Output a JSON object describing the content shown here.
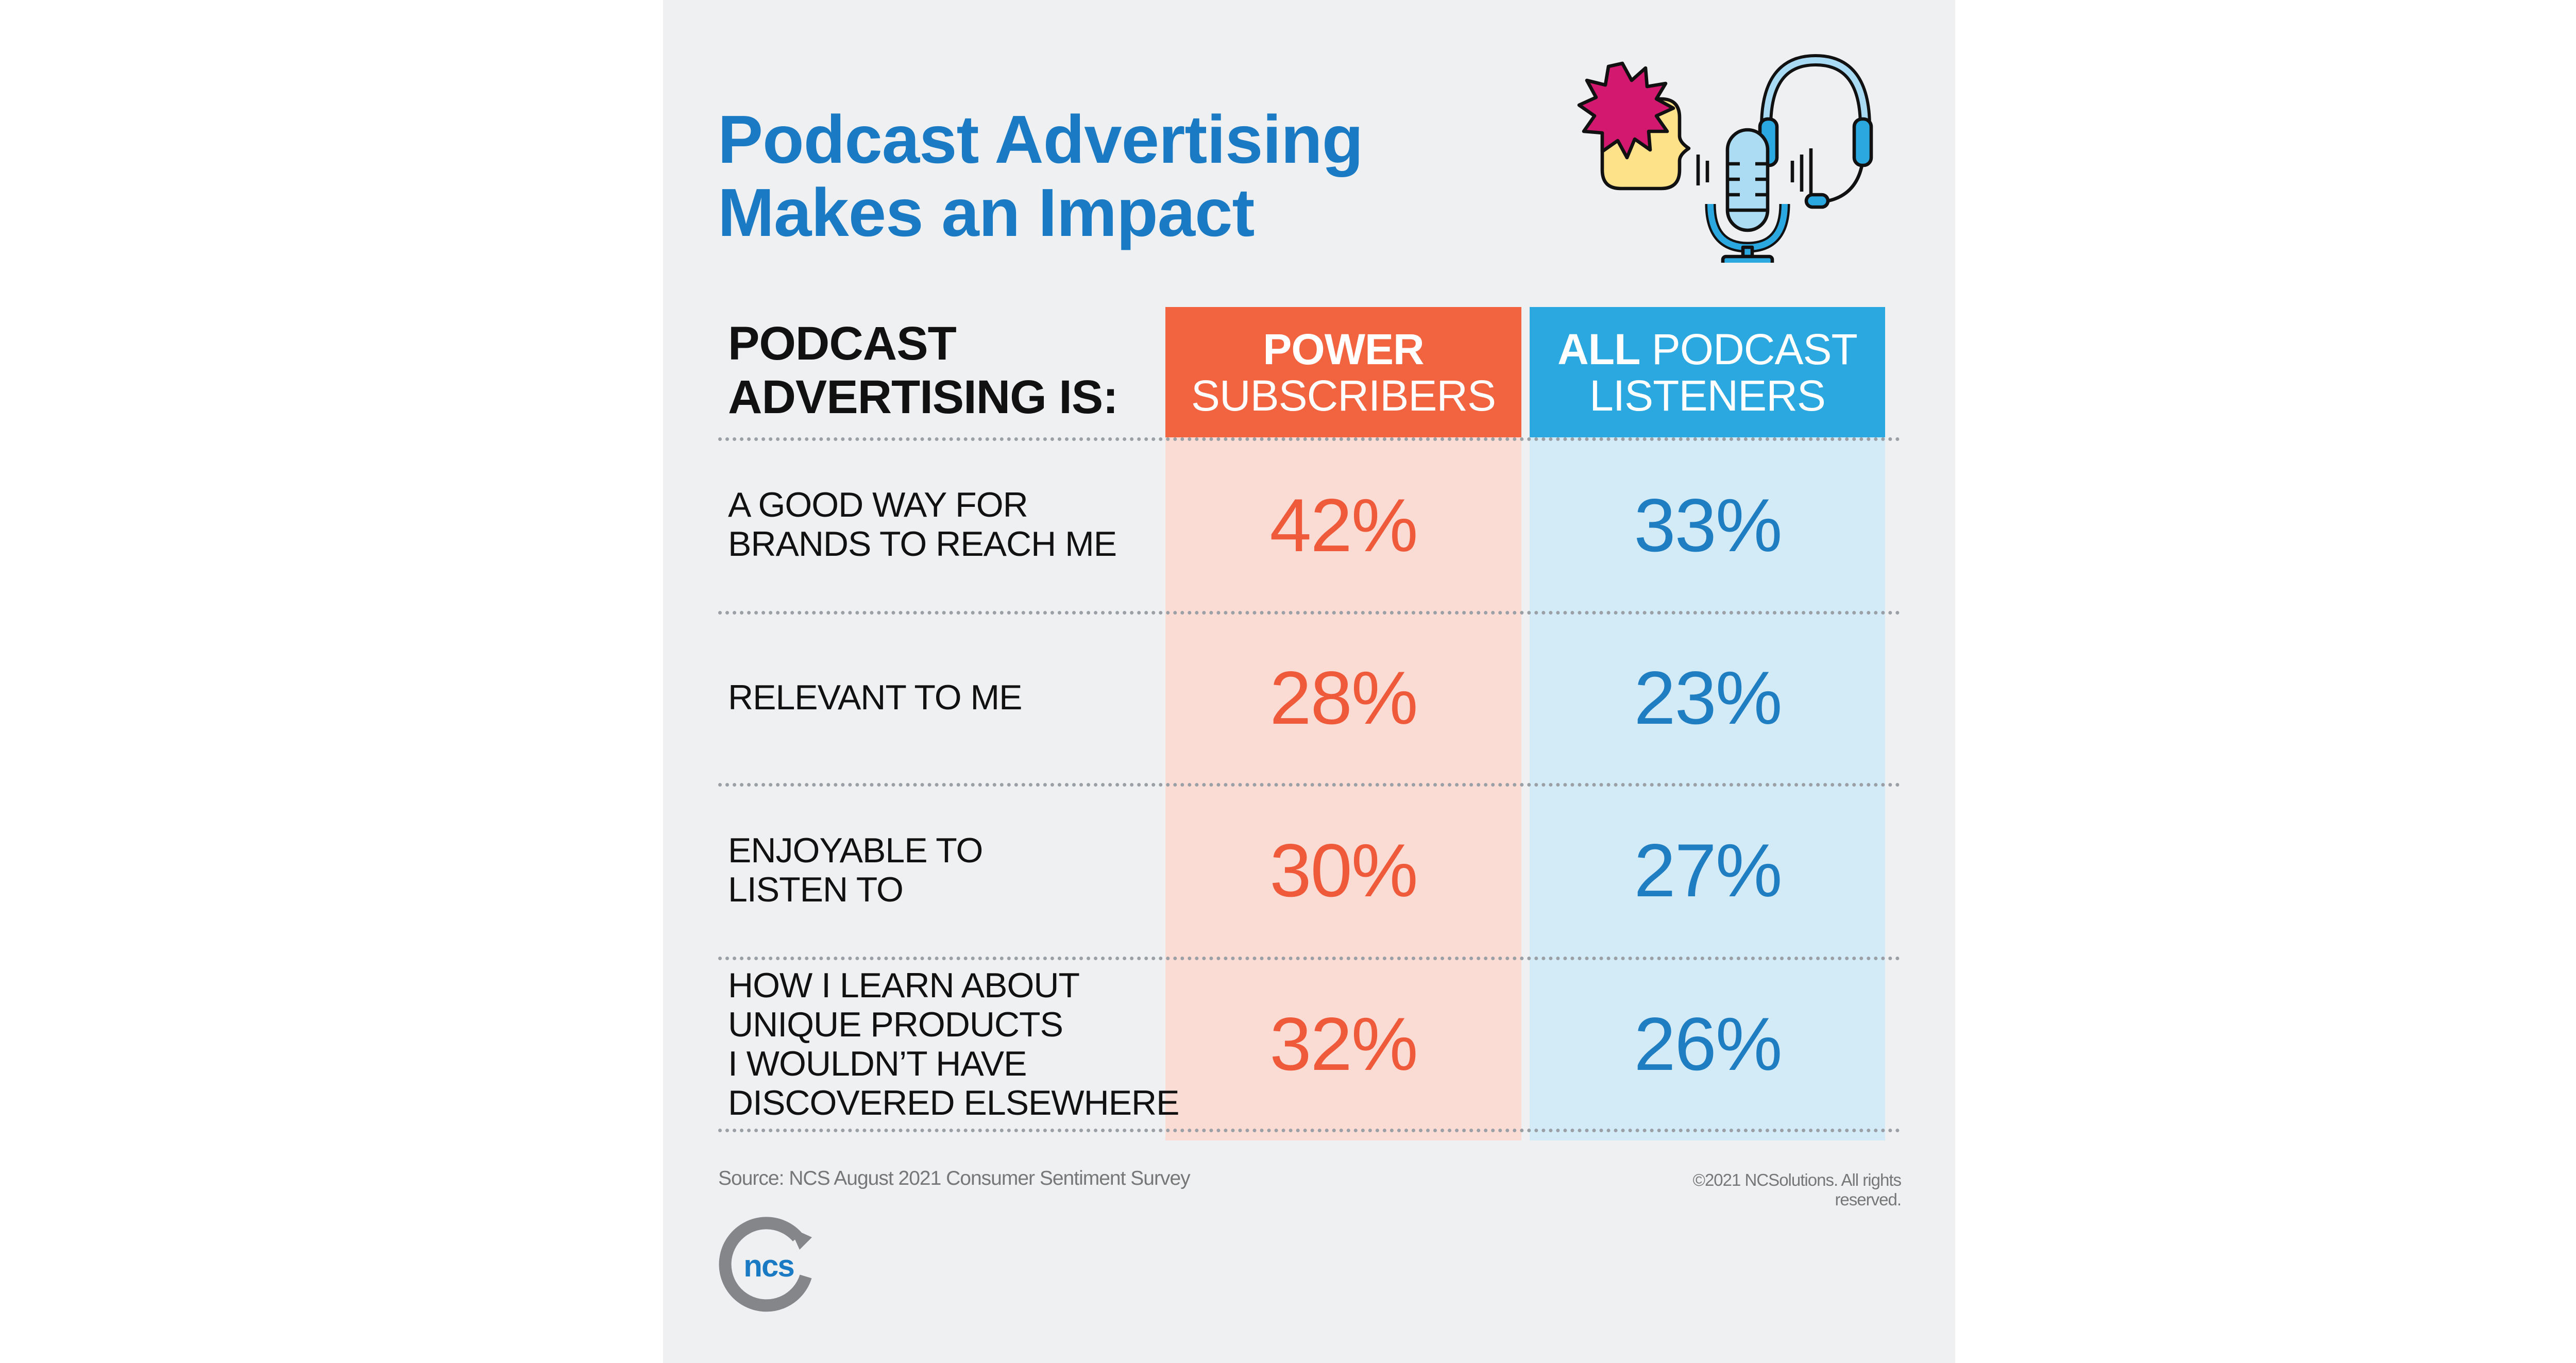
{
  "title": {
    "line1": "Podcast Advertising",
    "line2": "Makes an Impact"
  },
  "illustration": {
    "icons": [
      "speech-bubble-icon",
      "burst-icon",
      "microphone-icon",
      "headset-icon"
    ]
  },
  "table": {
    "header_label": {
      "line1": "PODCAST",
      "line2": "ADVERTISING IS:"
    },
    "columns": [
      {
        "bold": "POWER",
        "rest": "SUBSCRIBERS",
        "color": "#f26340"
      },
      {
        "bold": "ALL",
        "rest": "PODCAST LISTENERS",
        "color": "#2ba8e0"
      }
    ],
    "rows": [
      {
        "label": [
          "A GOOD WAY FOR",
          "BRANDS TO REACH ME"
        ],
        "power": "42%",
        "all": "33%"
      },
      {
        "label": [
          "RELEVANT TO ME"
        ],
        "power": "28%",
        "all": "23%"
      },
      {
        "label": [
          "ENJOYABLE TO",
          "LISTEN TO"
        ],
        "power": "30%",
        "all": "27%"
      },
      {
        "label": [
          "HOW I LEARN ABOUT",
          "UNIQUE PRODUCTS",
          "I WOULDN’T HAVE",
          "DISCOVERED ELSEWHERE"
        ],
        "power": "32%",
        "all": "26%"
      }
    ]
  },
  "footer": {
    "source": "Source: NCS August 2021 Consumer Sentiment Survey",
    "copyright": "©2021 NCSolutions. All rights reserved."
  },
  "logo": {
    "text": "ncs"
  },
  "colors": {
    "title": "#1a7bc4",
    "orange": "#f26340",
    "blue": "#2ba8e0",
    "orange_pct": "#ef5a3a",
    "blue_pct": "#1f7dc2"
  }
}
